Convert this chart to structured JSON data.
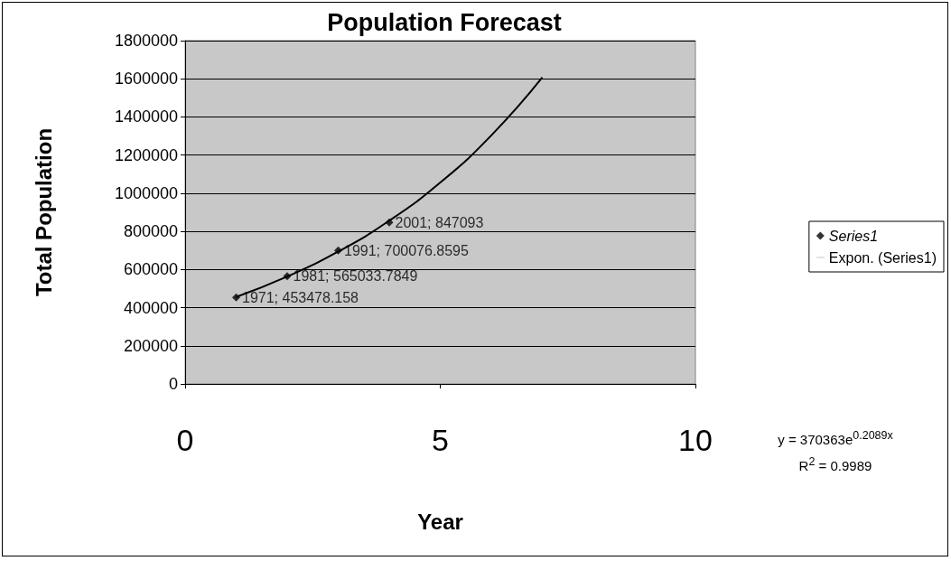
{
  "chart_data": {
    "type": "scatter",
    "title": "Population Forecast",
    "xlabel": "Year",
    "ylabel": "Total Population",
    "xlim": [
      0,
      10
    ],
    "xticks": [
      0,
      5,
      10
    ],
    "ylim": [
      0,
      1800000
    ],
    "yticks": [
      0,
      200000,
      400000,
      600000,
      800000,
      1000000,
      1200000,
      1400000,
      1600000,
      1800000
    ],
    "grid": "y",
    "legend": "right",
    "series": [
      {
        "name": "Series1",
        "marker": "diamond",
        "color": "#000000",
        "x": [
          1,
          2,
          3,
          4
        ],
        "values": [
          453478.158,
          565033.7849,
          700076.8595,
          847093
        ],
        "value_labels": [
          "1971; 453478.158",
          "1981; 565033.7849",
          "1991; 700076.8595",
          "2001; 847093"
        ]
      },
      {
        "name": "Expon. (Series1)",
        "type": "line",
        "marker": "none",
        "line_style": "solid",
        "color": "#000000",
        "x": [
          1,
          2,
          3,
          4,
          5,
          6,
          7
        ],
        "values": [
          456000,
          563000,
          694000,
          856000,
          1056000,
          1303000,
          1607000
        ]
      }
    ],
    "annotations": [
      "y = 370363e$^{0.2089x}$",
      "R$^{2}$ = 0.9989"
    ]
  }
}
